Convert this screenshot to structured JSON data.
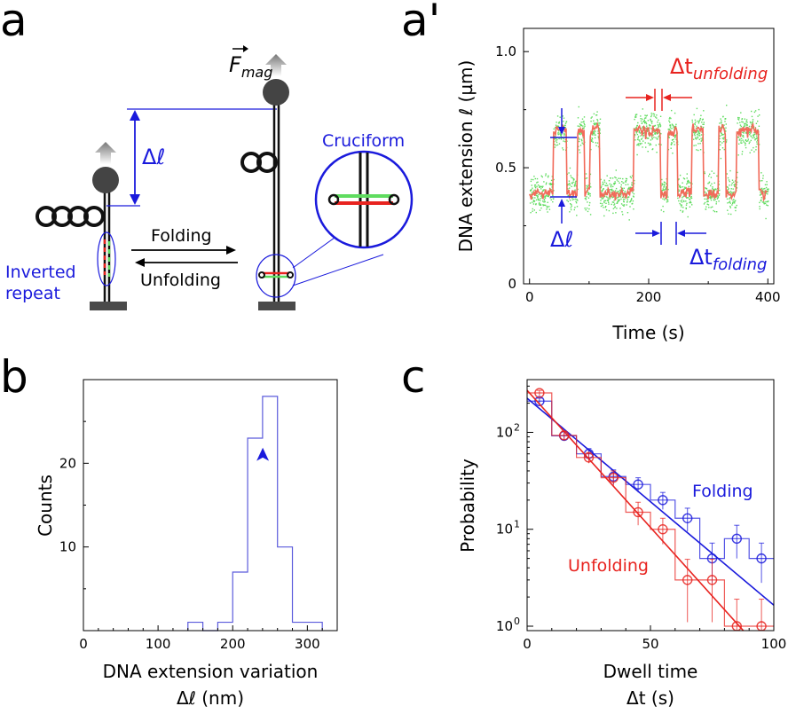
{
  "panels": {
    "a": {
      "label": "a",
      "force": "F",
      "force_sub": "mag",
      "delta_l": "Δℓ",
      "cruciform": "Cruciform",
      "folding": "Folding",
      "unfolding": "Unfolding",
      "inverted_1": "Inverted",
      "inverted_2": "repeat"
    },
    "a_prime": {
      "label": "a'",
      "dt_unfold": "Δt",
      "dt_unfold_sub": "unfolding",
      "dt_fold": "Δt",
      "dt_fold_sub": "folding",
      "delta_l": "Δℓ"
    },
    "b": {
      "label": "b",
      "arrowhead": "➤"
    },
    "c": {
      "label": "c",
      "folding": "Folding",
      "unfolding": "Unfolding"
    }
  },
  "colors": {
    "blue": "#1a1adc",
    "red": "#e8231f",
    "green": "#5fdc5f",
    "black": "#000000"
  },
  "chart_data": [
    {
      "type": "scatter",
      "panel": "a'",
      "xlabel": "Time (s)",
      "ylabel": "DNA extension ℓ (µm)",
      "xlim": [
        -10,
        410
      ],
      "ylim": [
        0,
        1.1
      ],
      "xticks": [
        0,
        200,
        400
      ],
      "yticks": [
        0,
        0.5,
        1.0
      ],
      "ytick_labels": [
        "0",
        "0.5",
        "1.0"
      ],
      "states": {
        "low": 0.39,
        "high": 0.66
      },
      "segments": [
        {
          "t0": 0,
          "t1": 40,
          "state": "low"
        },
        {
          "t0": 40,
          "t1": 62,
          "state": "high"
        },
        {
          "t0": 62,
          "t1": 80,
          "state": "low"
        },
        {
          "t0": 80,
          "t1": 92,
          "state": "high"
        },
        {
          "t0": 92,
          "t1": 102,
          "state": "low"
        },
        {
          "t0": 102,
          "t1": 118,
          "state": "high"
        },
        {
          "t0": 118,
          "t1": 175,
          "state": "low"
        },
        {
          "t0": 175,
          "t1": 220,
          "state": "high"
        },
        {
          "t0": 220,
          "t1": 232,
          "state": "low"
        },
        {
          "t0": 232,
          "t1": 248,
          "state": "high"
        },
        {
          "t0": 248,
          "t1": 272,
          "state": "low"
        },
        {
          "t0": 272,
          "t1": 292,
          "state": "high"
        },
        {
          "t0": 292,
          "t1": 318,
          "state": "low"
        },
        {
          "t0": 318,
          "t1": 330,
          "state": "high"
        },
        {
          "t0": 330,
          "t1": 348,
          "state": "low"
        },
        {
          "t0": 348,
          "t1": 385,
          "state": "high"
        },
        {
          "t0": 385,
          "t1": 400,
          "state": "low"
        }
      ]
    },
    {
      "type": "bar",
      "panel": "b",
      "xlabel": "DNA extension variation",
      "xlabel2": "Δℓ (nm)",
      "ylabel": "Counts",
      "xlim": [
        0,
        340
      ],
      "ylim": [
        0,
        30
      ],
      "xticks": [
        0,
        100,
        200,
        300
      ],
      "yticks": [
        10,
        20
      ],
      "bin_edges": [
        140,
        160,
        180,
        200,
        220,
        240,
        260,
        280,
        300,
        320
      ],
      "counts": [
        1,
        0,
        1,
        7,
        23,
        28,
        10,
        1,
        1
      ],
      "arrow_at": [
        240,
        21
      ]
    },
    {
      "type": "line",
      "panel": "c",
      "xlabel": "Dwell time",
      "xlabel2": "Δt (s)",
      "ylabel": "Probability",
      "yscale": "log",
      "xlim": [
        0,
        100
      ],
      "ylim": [
        0.9,
        350
      ],
      "xticks": [
        0,
        50,
        100
      ],
      "yticks": [
        1,
        10,
        100
      ],
      "series": [
        {
          "name": "Folding",
          "color": "#1a1adc",
          "x": [
            5,
            15,
            25,
            35,
            45,
            55,
            65,
            75,
            85,
            95
          ],
          "y": [
            210,
            92,
            60,
            35,
            29,
            20,
            13,
            5,
            8,
            5
          ],
          "err": [
            15,
            10,
            8,
            6,
            5,
            4,
            3.5,
            2.2,
            3,
            2.2
          ],
          "fit": {
            "x": [
              0,
              100
            ],
            "y": [
              225,
              1.65
            ]
          }
        },
        {
          "name": "Unfolding",
          "color": "#e8231f",
          "x": [
            5,
            15,
            25,
            35,
            45,
            55,
            65,
            75,
            85,
            95
          ],
          "y": [
            255,
            93,
            55,
            34,
            15,
            10,
            3,
            3,
            1,
            1
          ],
          "err": [
            16,
            10,
            7,
            6,
            4,
            3,
            1.9,
            1.9,
            0.9,
            0.9
          ],
          "fit": {
            "x": [
              -3,
              88
            ],
            "y": [
              330,
              0.88
            ]
          }
        }
      ]
    }
  ]
}
